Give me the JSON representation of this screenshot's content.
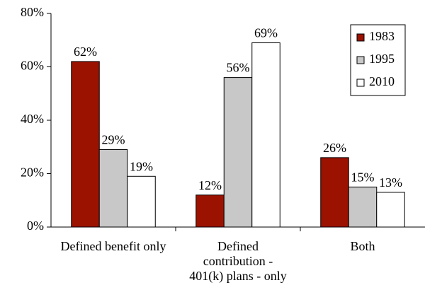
{
  "chart_data": {
    "type": "bar",
    "categories": [
      "Defined benefit only",
      "Defined contribution - 401(k) plans - only",
      "Both"
    ],
    "series": [
      {
        "name": "1983",
        "color": "#9b1200",
        "values": [
          62,
          12,
          26
        ],
        "value_labels": [
          "62%",
          "12%",
          "26%"
        ]
      },
      {
        "name": "1995",
        "color": "#c8c8c8",
        "values": [
          29,
          56,
          15
        ],
        "value_labels": [
          "29%",
          "56%",
          "15%"
        ]
      },
      {
        "name": "2010",
        "color": "#ffffff",
        "values": [
          19,
          69,
          13
        ],
        "value_labels": [
          "19%",
          "69%",
          "13%"
        ]
      }
    ],
    "ylim": [
      0,
      80
    ],
    "yticks": [
      {
        "value": 0,
        "label": "0%"
      },
      {
        "value": 20,
        "label": "20%"
      },
      {
        "value": 40,
        "label": "40%"
      },
      {
        "value": 60,
        "label": "60%"
      },
      {
        "value": 80,
        "label": "80%"
      }
    ],
    "grid": false,
    "legend": "top-right"
  }
}
